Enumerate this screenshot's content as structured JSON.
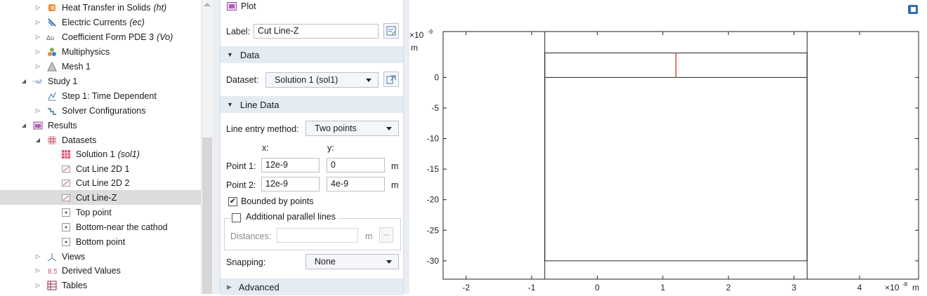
{
  "tree": {
    "items": [
      {
        "label": "Heat Transfer in Solids",
        "tag": "(ht)",
        "icon": "heat-transfer-icon"
      },
      {
        "label": "Electric Currents",
        "tag": "(ec)",
        "icon": "electric-currents-icon"
      },
      {
        "label": "Coefficient Form PDE 3",
        "tag": "(Vo)",
        "icon": "pde-icon"
      },
      {
        "label": "Multiphysics",
        "tag": "",
        "icon": "multiphysics-icon"
      },
      {
        "label": "Mesh 1",
        "tag": "",
        "icon": "mesh-icon"
      },
      {
        "label": "Study 1",
        "tag": "",
        "icon": "study-icon"
      },
      {
        "label": "Step 1: Time Dependent",
        "tag": "",
        "icon": "time-dependent-icon"
      },
      {
        "label": "Solver Configurations",
        "tag": "",
        "icon": "solver-icon"
      },
      {
        "label": "Results",
        "tag": "",
        "icon": "results-icon"
      },
      {
        "label": "Datasets",
        "tag": "",
        "icon": "datasets-icon"
      },
      {
        "label": "Solution 1",
        "tag": "(sol1)",
        "icon": "solution-icon"
      },
      {
        "label": "Cut Line 2D 1",
        "tag": "",
        "icon": "cut-line-icon"
      },
      {
        "label": "Cut Line 2D 2",
        "tag": "",
        "icon": "cut-line-icon"
      },
      {
        "label": "Cut Line-Z",
        "tag": "",
        "icon": "cut-line-icon"
      },
      {
        "label": "Top point",
        "tag": "",
        "icon": "cut-point-icon"
      },
      {
        "label": "Bottom-near the cathod",
        "tag": "",
        "icon": "cut-point-icon"
      },
      {
        "label": "Bottom point",
        "tag": "",
        "icon": "cut-point-icon"
      },
      {
        "label": "Views",
        "tag": "",
        "icon": "views-icon"
      },
      {
        "label": "Derived Values",
        "tag": "",
        "icon": "derived-values-icon"
      },
      {
        "label": "Tables",
        "tag": "",
        "icon": "tables-icon"
      }
    ]
  },
  "settings": {
    "plot_label": "Plot",
    "label_caption": "Label:",
    "label_value": "Cut Line-Z",
    "data_section": "Data",
    "dataset_caption": "Dataset:",
    "dataset_value": "Solution 1 (sol1)",
    "line_data_section": "Line Data",
    "entry_method_caption": "Line entry method:",
    "entry_method_value": "Two points",
    "x_header": "x:",
    "y_header": "y:",
    "point1_caption": "Point 1:",
    "point1_x": "12e-9",
    "point1_y": "0",
    "point2_caption": "Point 2:",
    "point2_x": "12e-9",
    "point2_y": "4e-9",
    "unit_m": "m",
    "bounded_label": "Bounded by points",
    "bounded_checked": true,
    "parallel_label": "Additional parallel lines",
    "parallel_checked": false,
    "distances_caption": "Distances:",
    "snapping_caption": "Snapping:",
    "snapping_value": "None",
    "advanced_section": "Advanced"
  },
  "graphics": {
    "y_exponent": "×10",
    "y_exponent_power": "-9",
    "y_unit": "m",
    "x_exponent": "×10",
    "x_exponent_power": "-8",
    "x_unit": "m",
    "x_ticks": [
      "-2",
      "-1",
      "0",
      "1",
      "2",
      "3",
      "4"
    ],
    "y_ticks": [
      "0",
      "-5",
      "-10",
      "-15",
      "-20",
      "-25",
      "-30"
    ]
  },
  "chart_data": {
    "type": "line",
    "x_unit": "m",
    "y_unit": "m",
    "x_scale_label": "×10^-8",
    "y_scale_label": "×10^-9",
    "xlim": [
      -2.35,
      4.9
    ],
    "ylim": [
      -33,
      7.5
    ],
    "x_ticks": [
      -2,
      -1,
      0,
      1,
      2,
      3,
      4
    ],
    "y_ticks": [
      0,
      -5,
      -10,
      -15,
      -20,
      -25,
      -30
    ],
    "geometry_rect": {
      "x_min": -0.8,
      "x_max": 3.2,
      "y_min": -30,
      "y_max": 4
    },
    "inner_line_y": 0,
    "series": [
      {
        "name": "Cut Line-Z",
        "points": [
          [
            1.2,
            0
          ],
          [
            1.2,
            4
          ]
        ],
        "color": "#c0392b"
      }
    ]
  },
  "colors": {
    "section_header": "#e4ebf3",
    "selected_row": "#dcdcdc",
    "cut_line": "#c0392b"
  }
}
